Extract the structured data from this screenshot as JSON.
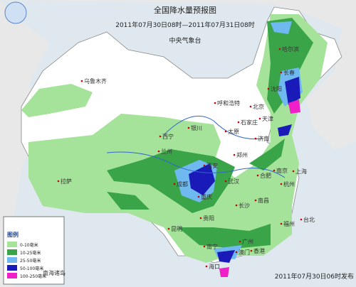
{
  "header": {
    "title": "全国降水量预报图",
    "period": "2011年07月30日08时—2011年07月31日08时",
    "agency": "中央气象台"
  },
  "legend": {
    "title": "图例",
    "items": [
      {
        "label": "0-10毫米",
        "color": "#a5e39a"
      },
      {
        "label": "10-25毫米",
        "color": "#3aa548"
      },
      {
        "label": "25-50毫米",
        "color": "#6fb8f0"
      },
      {
        "label": "50-100毫米",
        "color": "#1a1ab8"
      },
      {
        "label": "100-250毫米",
        "color": "#f020c8"
      }
    ]
  },
  "inset_label": "南海诸岛",
  "cities": [
    "乌鲁木齐",
    "哈尔滨",
    "长春",
    "沈阳",
    "呼和浩特",
    "北京",
    "天津",
    "石家庄",
    "银川",
    "太原",
    "济南",
    "西宁",
    "兰州",
    "郑州",
    "西安",
    "拉萨",
    "成都",
    "合肥",
    "南京",
    "上海",
    "武汉",
    "杭州",
    "重庆",
    "长沙",
    "南昌",
    "贵阳",
    "福州",
    "台北",
    "昆明",
    "南宁",
    "广州",
    "香港",
    "澳门",
    "海口"
  ],
  "footer": "2011年07月30日06时发布"
}
